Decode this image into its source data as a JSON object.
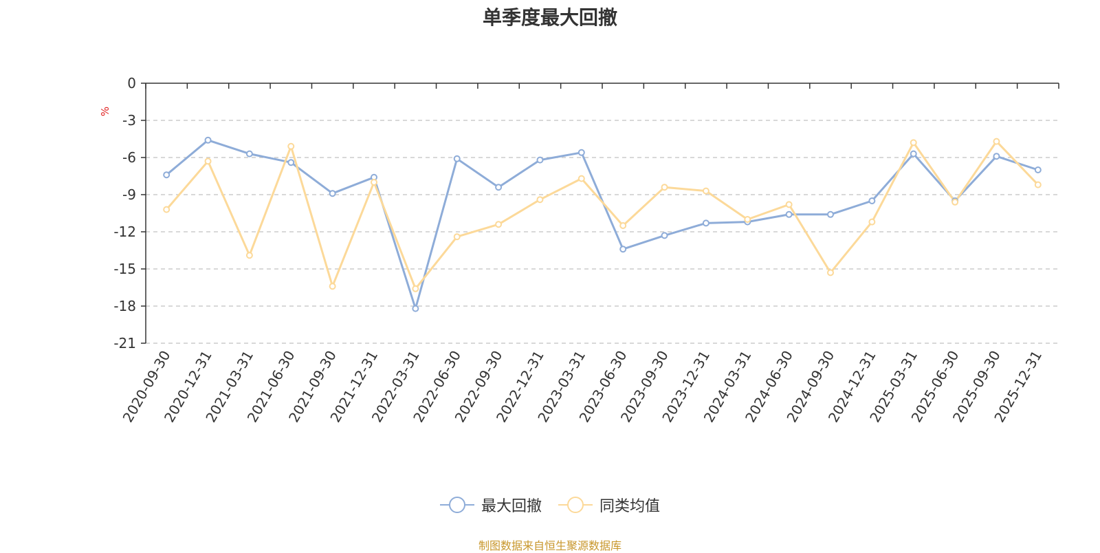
{
  "chart_data": {
    "type": "line",
    "title": "单季度最大回撤",
    "ylabel": "%",
    "ylim": [
      -21,
      0
    ],
    "yticks": [
      0,
      -3,
      -6,
      -9,
      -12,
      -15,
      -18,
      -21
    ],
    "grid": true,
    "legend_position": "bottom",
    "categories": [
      "2020-09-30",
      "2020-12-31",
      "2021-03-31",
      "2021-06-30",
      "2021-09-30",
      "2021-12-31",
      "2022-03-31",
      "2022-06-30",
      "2022-09-30",
      "2022-12-31",
      "2023-03-31",
      "2023-06-30",
      "2023-09-30",
      "2023-12-31",
      "2024-03-31",
      "2024-06-30",
      "2024-09-30",
      "2024-12-31",
      "2025-03-31",
      "2025-06-30",
      "2025-09-30",
      "2025-12-31"
    ],
    "series": [
      {
        "name": "最大回撤",
        "color": "#8eacd8",
        "values": [
          -7.4,
          -4.6,
          -5.7,
          -6.4,
          -8.9,
          -7.6,
          -18.2,
          -6.1,
          -8.4,
          -6.2,
          -5.6,
          -13.4,
          -12.3,
          -11.3,
          -11.2,
          -10.6,
          -10.6,
          -9.5,
          -5.7,
          -9.5,
          -5.9,
          -7.0
        ]
      },
      {
        "name": "同类均值",
        "color": "#fcd999",
        "values": [
          -10.2,
          -6.3,
          -13.9,
          -5.1,
          -16.4,
          -8.0,
          -16.6,
          -12.4,
          -11.4,
          -9.4,
          -7.7,
          -11.5,
          -8.4,
          -8.7,
          -11.0,
          -9.8,
          -15.3,
          -11.2,
          -4.8,
          -9.6,
          -4.7,
          -8.2
        ]
      }
    ]
  },
  "source": "制图数据来自恒生聚源数据库"
}
